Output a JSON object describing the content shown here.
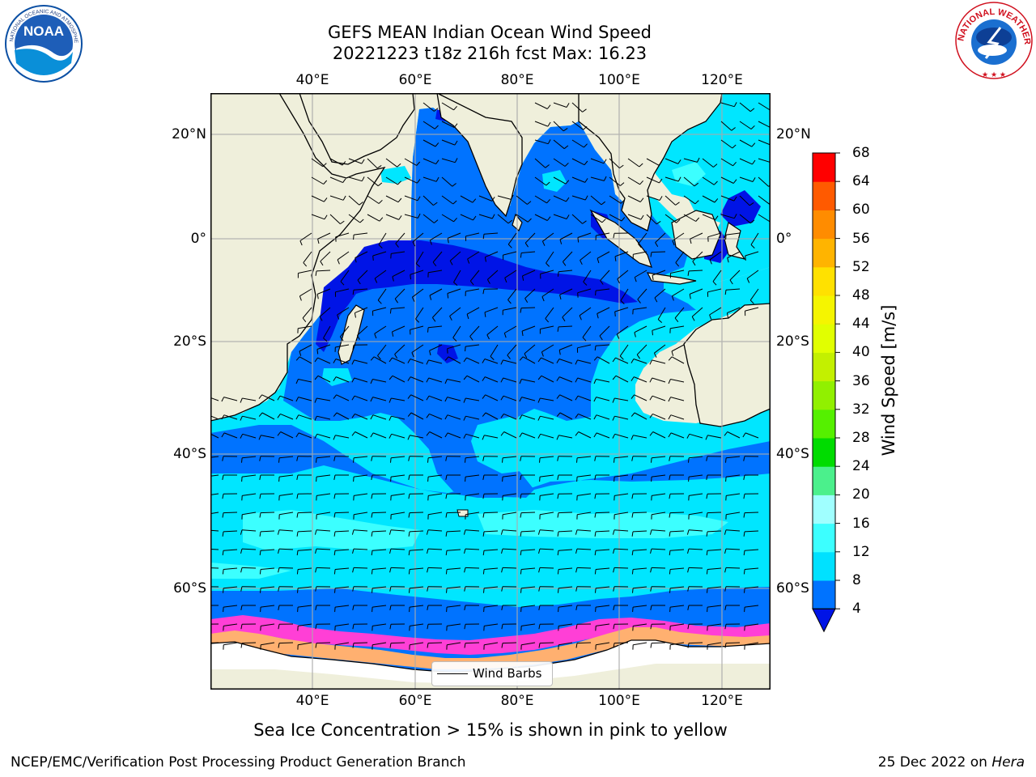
{
  "title_line1": "GEFS MEAN Indian Ocean Wind Speed",
  "title_line2": "20221223 t18z 216h fcst   Max: 16.23",
  "lon_ticks": [
    "40°E",
    "60°E",
    "80°E",
    "100°E",
    "120°E"
  ],
  "lat_ticks": [
    "20°N",
    "0°",
    "20°S",
    "40°S",
    "60°S"
  ],
  "colorbar": {
    "label": "Wind Speed [m/s]",
    "ticks": [
      "4",
      "8",
      "12",
      "16",
      "20",
      "24",
      "28",
      "32",
      "36",
      "40",
      "44",
      "48",
      "52",
      "56",
      "60",
      "64",
      "68"
    ],
    "colors": [
      "#0073ff",
      "#00e1ff",
      "#3cffff",
      "#a0ffff",
      "#4bf08c",
      "#00dc00",
      "#55f000",
      "#91f000",
      "#c3f000",
      "#e1ff00",
      "#f5f500",
      "#ffe100",
      "#ffb400",
      "#ff8c00",
      "#ff5a00",
      "#ff0000"
    ],
    "under_color": "#0014e6"
  },
  "legend": {
    "label": "Wind Barbs"
  },
  "caption": "Sea Ice Concentration > 15% is shown in pink to yellow",
  "footer_left": "NCEP/EMC/Verification Post Processing Product Generation Branch",
  "footer_right_prefix": "25 Dec 2022 on ",
  "footer_right_machine": "Hera",
  "logos": {
    "noaa": "NOAA",
    "nws": "NATIONAL WEATHER SERVICE"
  }
}
